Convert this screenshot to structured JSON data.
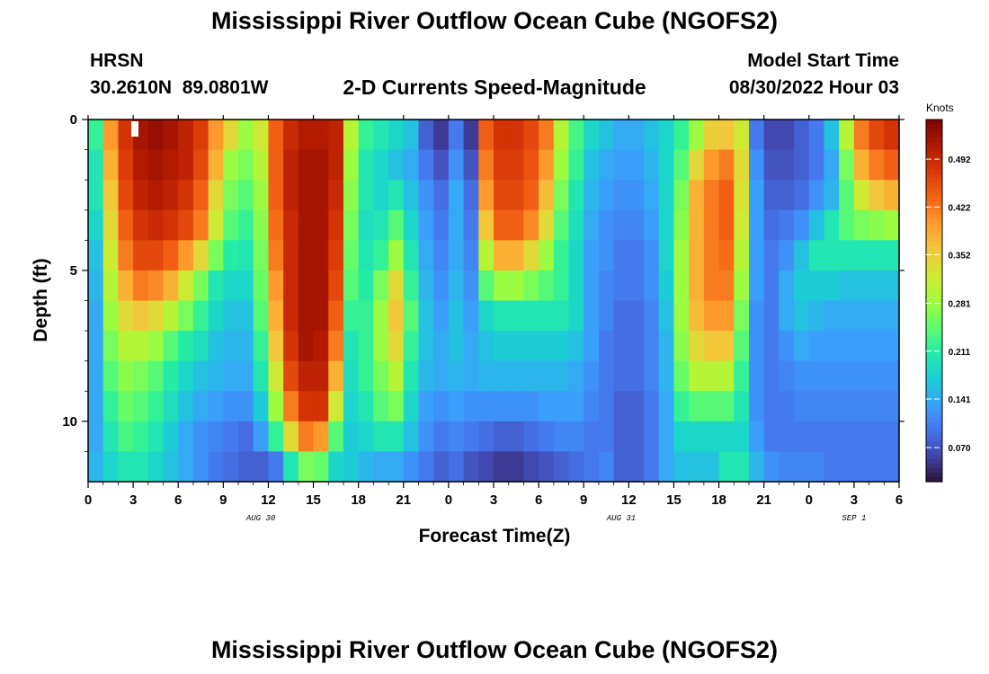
{
  "titles": {
    "main": "Mississippi River Outflow Ocean Cube (NGOFS2)",
    "bottom_repeat": "Mississippi River Outflow Ocean Cube (NGOFS2)"
  },
  "header": {
    "station": "HRSN",
    "coords": "30.2610N  89.0801W",
    "subtitle": "2-D Currents Speed-Magnitude",
    "model_label": "Model Start Time",
    "model_time": "08/30/2022 Hour 03"
  },
  "chart_data": {
    "type": "heatmap",
    "title": "2-D Currents Speed-Magnitude",
    "xlabel": "Forecast Time(Z)",
    "ylabel": "Depth (ft)",
    "x_range_hours": [
      0,
      54
    ],
    "y_range_ft": [
      0,
      12
    ],
    "x_ticks": [
      "0",
      "3",
      "6",
      "9",
      "12",
      "15",
      "18",
      "21",
      "0",
      "3",
      "6",
      "9",
      "12",
      "15",
      "18",
      "21",
      "0",
      "3",
      "6"
    ],
    "y_ticks": [
      "0",
      "5",
      "10"
    ],
    "date_labels": [
      "AUG 30",
      "AUG 31",
      "SEP 1"
    ],
    "date_label_hours": [
      11.5,
      35.5,
      51
    ],
    "colorbar": {
      "unit": "Knots",
      "ticks": [
        "0.070",
        "0.141",
        "0.211",
        "0.281",
        "0.352",
        "0.422",
        "0.492"
      ],
      "tick_values": [
        0.07,
        0.141,
        0.211,
        0.281,
        0.352,
        0.422,
        0.492
      ],
      "range": [
        0.02,
        0.55
      ]
    },
    "colormap_stops": [
      "#30123b",
      "#4145ab",
      "#4675ed",
      "#39a2fc",
      "#1bcfd4",
      "#24eca6",
      "#61fc6c",
      "#a4fc3b",
      "#d1e834",
      "#f3c63a",
      "#fe9b2d",
      "#f36315",
      "#d93806",
      "#b11901",
      "#7a0403"
    ],
    "time_hours": [
      0.5,
      1.5,
      2.5,
      3.5,
      4.5,
      5.5,
      6.5,
      7.5,
      8.5,
      9.5,
      10.5,
      11.5,
      12.5,
      13.5,
      14.5,
      15.5,
      16.5,
      17.5,
      18.5,
      19.5,
      20.5,
      21.5,
      22.5,
      23.5,
      24.5,
      25.5,
      26.5,
      27.5,
      28.5,
      29.5,
      30.5,
      31.5,
      32.5,
      33.5,
      34.5,
      35.5,
      36.5,
      37.5,
      38.5,
      39.5,
      40.5,
      41.5,
      42.5,
      43.5,
      44.5,
      45.5,
      46.5,
      47.5,
      48.5,
      49.5,
      50.5,
      51.5,
      52.5,
      53.5
    ],
    "depth_ft": [
      0.5,
      1.5,
      2.5,
      3.5,
      4.5,
      5.5,
      6.5,
      7.5,
      8.5,
      9.5,
      10.5,
      11.5
    ],
    "speed_knots": [
      [
        0.22,
        0.4,
        0.48,
        0.52,
        0.53,
        0.52,
        0.5,
        0.47,
        0.4,
        0.34,
        0.28,
        0.32,
        0.44,
        0.49,
        0.51,
        0.51,
        0.5,
        0.3,
        0.22,
        0.2,
        0.18,
        0.16,
        0.08,
        0.05,
        0.1,
        0.05,
        0.44,
        0.48,
        0.48,
        0.46,
        0.42,
        0.3,
        0.23,
        0.18,
        0.16,
        0.14,
        0.14,
        0.16,
        0.18,
        0.22,
        0.28,
        0.35,
        0.36,
        0.32,
        0.1,
        0.06,
        0.06,
        0.08,
        0.1,
        0.16,
        0.3,
        0.42,
        0.46,
        0.48
      ],
      [
        0.2,
        0.38,
        0.47,
        0.51,
        0.52,
        0.51,
        0.5,
        0.46,
        0.38,
        0.28,
        0.26,
        0.3,
        0.44,
        0.5,
        0.52,
        0.52,
        0.5,
        0.28,
        0.2,
        0.18,
        0.16,
        0.14,
        0.1,
        0.07,
        0.12,
        0.07,
        0.42,
        0.47,
        0.47,
        0.45,
        0.4,
        0.28,
        0.22,
        0.16,
        0.14,
        0.13,
        0.13,
        0.15,
        0.18,
        0.24,
        0.34,
        0.4,
        0.42,
        0.34,
        0.12,
        0.07,
        0.07,
        0.08,
        0.1,
        0.14,
        0.26,
        0.38,
        0.42,
        0.44
      ],
      [
        0.2,
        0.36,
        0.46,
        0.5,
        0.51,
        0.5,
        0.48,
        0.44,
        0.34,
        0.26,
        0.24,
        0.28,
        0.44,
        0.5,
        0.52,
        0.52,
        0.49,
        0.27,
        0.2,
        0.18,
        0.2,
        0.16,
        0.12,
        0.09,
        0.14,
        0.09,
        0.4,
        0.46,
        0.46,
        0.44,
        0.37,
        0.26,
        0.2,
        0.15,
        0.13,
        0.12,
        0.12,
        0.14,
        0.18,
        0.26,
        0.38,
        0.42,
        0.44,
        0.33,
        0.13,
        0.08,
        0.08,
        0.09,
        0.12,
        0.15,
        0.24,
        0.32,
        0.36,
        0.38
      ],
      [
        0.18,
        0.34,
        0.44,
        0.48,
        0.49,
        0.48,
        0.46,
        0.42,
        0.32,
        0.24,
        0.22,
        0.27,
        0.43,
        0.49,
        0.52,
        0.52,
        0.48,
        0.26,
        0.19,
        0.2,
        0.24,
        0.18,
        0.13,
        0.1,
        0.14,
        0.1,
        0.36,
        0.44,
        0.44,
        0.41,
        0.34,
        0.24,
        0.19,
        0.14,
        0.12,
        0.11,
        0.11,
        0.13,
        0.18,
        0.27,
        0.38,
        0.42,
        0.44,
        0.32,
        0.13,
        0.09,
        0.1,
        0.12,
        0.16,
        0.2,
        0.24,
        0.26,
        0.27,
        0.28
      ],
      [
        0.16,
        0.32,
        0.42,
        0.46,
        0.46,
        0.44,
        0.4,
        0.34,
        0.26,
        0.21,
        0.2,
        0.26,
        0.42,
        0.49,
        0.52,
        0.52,
        0.47,
        0.25,
        0.2,
        0.22,
        0.28,
        0.2,
        0.14,
        0.11,
        0.14,
        0.11,
        0.3,
        0.38,
        0.38,
        0.34,
        0.28,
        0.22,
        0.18,
        0.13,
        0.12,
        0.1,
        0.1,
        0.12,
        0.18,
        0.28,
        0.38,
        0.42,
        0.43,
        0.3,
        0.13,
        0.1,
        0.12,
        0.16,
        0.2,
        0.2,
        0.2,
        0.2,
        0.2,
        0.2
      ],
      [
        0.15,
        0.3,
        0.38,
        0.42,
        0.41,
        0.38,
        0.32,
        0.26,
        0.2,
        0.18,
        0.18,
        0.25,
        0.4,
        0.49,
        0.52,
        0.52,
        0.46,
        0.24,
        0.21,
        0.26,
        0.34,
        0.22,
        0.15,
        0.12,
        0.15,
        0.12,
        0.24,
        0.28,
        0.28,
        0.26,
        0.24,
        0.22,
        0.18,
        0.13,
        0.11,
        0.1,
        0.1,
        0.12,
        0.17,
        0.28,
        0.38,
        0.42,
        0.42,
        0.28,
        0.13,
        0.1,
        0.14,
        0.17,
        0.17,
        0.17,
        0.16,
        0.16,
        0.16,
        0.16
      ],
      [
        0.14,
        0.28,
        0.34,
        0.36,
        0.34,
        0.3,
        0.26,
        0.22,
        0.18,
        0.16,
        0.16,
        0.24,
        0.38,
        0.49,
        0.52,
        0.52,
        0.44,
        0.22,
        0.22,
        0.28,
        0.36,
        0.24,
        0.16,
        0.13,
        0.16,
        0.13,
        0.18,
        0.2,
        0.2,
        0.2,
        0.2,
        0.2,
        0.18,
        0.13,
        0.11,
        0.09,
        0.09,
        0.11,
        0.16,
        0.28,
        0.37,
        0.4,
        0.4,
        0.26,
        0.12,
        0.1,
        0.14,
        0.16,
        0.15,
        0.14,
        0.14,
        0.14,
        0.14,
        0.14
      ],
      [
        0.14,
        0.26,
        0.3,
        0.3,
        0.28,
        0.24,
        0.21,
        0.19,
        0.16,
        0.15,
        0.15,
        0.22,
        0.36,
        0.48,
        0.52,
        0.51,
        0.42,
        0.2,
        0.22,
        0.28,
        0.34,
        0.22,
        0.16,
        0.14,
        0.16,
        0.14,
        0.16,
        0.17,
        0.17,
        0.17,
        0.17,
        0.17,
        0.16,
        0.13,
        0.1,
        0.09,
        0.09,
        0.11,
        0.15,
        0.27,
        0.34,
        0.36,
        0.36,
        0.24,
        0.12,
        0.1,
        0.12,
        0.14,
        0.13,
        0.13,
        0.13,
        0.13,
        0.13,
        0.13
      ],
      [
        0.14,
        0.24,
        0.27,
        0.26,
        0.24,
        0.21,
        0.18,
        0.16,
        0.15,
        0.14,
        0.14,
        0.2,
        0.32,
        0.46,
        0.5,
        0.5,
        0.38,
        0.19,
        0.22,
        0.26,
        0.3,
        0.2,
        0.15,
        0.14,
        0.15,
        0.14,
        0.15,
        0.15,
        0.15,
        0.15,
        0.15,
        0.15,
        0.14,
        0.12,
        0.1,
        0.09,
        0.09,
        0.11,
        0.15,
        0.25,
        0.3,
        0.3,
        0.3,
        0.22,
        0.12,
        0.1,
        0.11,
        0.12,
        0.12,
        0.12,
        0.12,
        0.12,
        0.12,
        0.12
      ],
      [
        0.14,
        0.22,
        0.25,
        0.24,
        0.22,
        0.19,
        0.16,
        0.14,
        0.13,
        0.12,
        0.12,
        0.17,
        0.28,
        0.42,
        0.48,
        0.48,
        0.32,
        0.18,
        0.2,
        0.24,
        0.26,
        0.18,
        0.13,
        0.12,
        0.13,
        0.12,
        0.12,
        0.12,
        0.12,
        0.12,
        0.13,
        0.13,
        0.13,
        0.11,
        0.1,
        0.08,
        0.08,
        0.1,
        0.14,
        0.22,
        0.24,
        0.24,
        0.24,
        0.2,
        0.12,
        0.1,
        0.1,
        0.11,
        0.11,
        0.11,
        0.11,
        0.11,
        0.11,
        0.11
      ],
      [
        0.14,
        0.2,
        0.23,
        0.22,
        0.2,
        0.17,
        0.14,
        0.12,
        0.11,
        0.1,
        0.09,
        0.13,
        0.22,
        0.34,
        0.42,
        0.4,
        0.24,
        0.17,
        0.18,
        0.2,
        0.2,
        0.16,
        0.12,
        0.1,
        0.11,
        0.1,
        0.09,
        0.08,
        0.08,
        0.09,
        0.1,
        0.11,
        0.11,
        0.1,
        0.1,
        0.08,
        0.08,
        0.1,
        0.14,
        0.18,
        0.18,
        0.18,
        0.18,
        0.18,
        0.13,
        0.1,
        0.1,
        0.1,
        0.1,
        0.1,
        0.1,
        0.1,
        0.1,
        0.1
      ],
      [
        0.15,
        0.18,
        0.2,
        0.2,
        0.18,
        0.16,
        0.14,
        0.12,
        0.1,
        0.09,
        0.08,
        0.08,
        0.1,
        0.2,
        0.26,
        0.25,
        0.18,
        0.17,
        0.15,
        0.14,
        0.14,
        0.12,
        0.1,
        0.08,
        0.09,
        0.07,
        0.06,
        0.05,
        0.05,
        0.06,
        0.07,
        0.08,
        0.09,
        0.1,
        0.11,
        0.08,
        0.08,
        0.1,
        0.14,
        0.16,
        0.16,
        0.16,
        0.2,
        0.2,
        0.15,
        0.12,
        0.11,
        0.11,
        0.11,
        0.1,
        0.1,
        0.1,
        0.1,
        0.1
      ]
    ]
  }
}
